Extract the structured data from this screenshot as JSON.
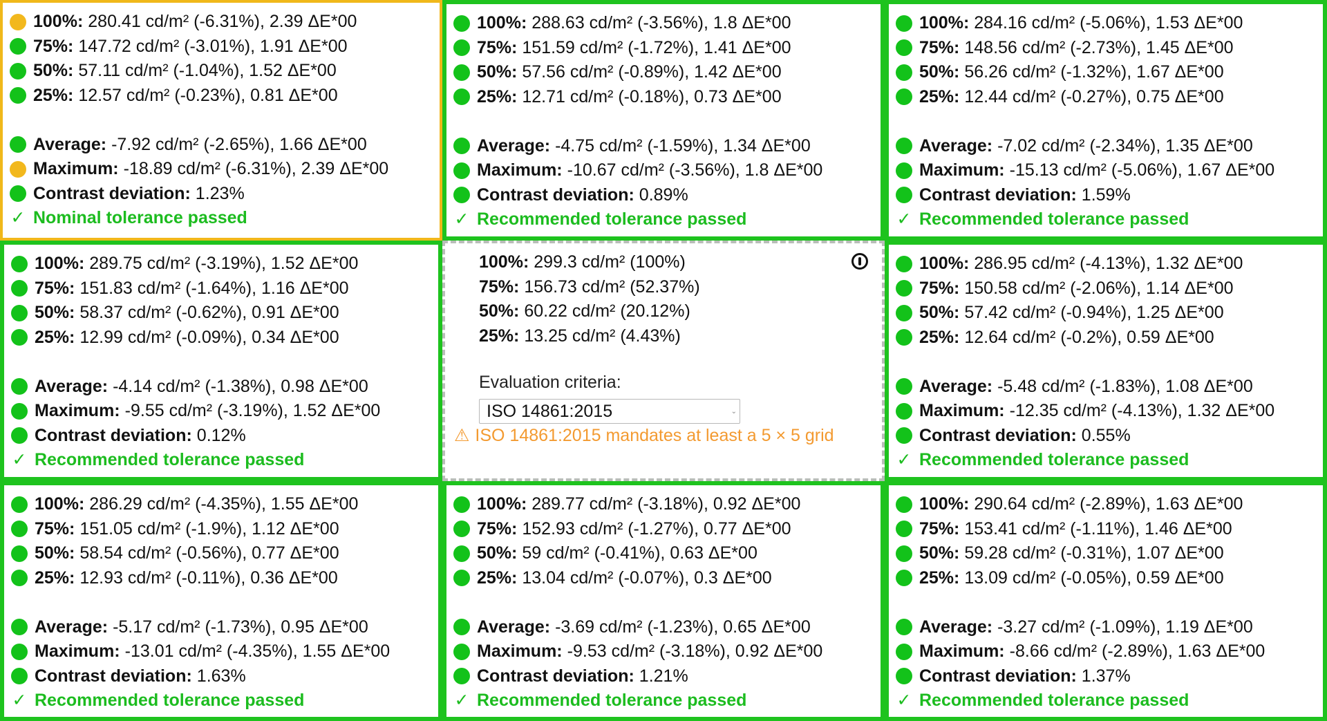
{
  "labels": {
    "p100": "100%:",
    "p75": "75%:",
    "p50": "50%:",
    "p25": "25%:",
    "average": "Average:",
    "maximum": "Maximum:",
    "contrast": "Contrast deviation:"
  },
  "check_glyph": "✓",
  "colors": {
    "green": "#13c21a",
    "yellow": "#f2b81d",
    "warning": "#f39a30",
    "green_border": "#1ec31e",
    "yellow_border": "#f0b81a"
  },
  "reference": {
    "rows": [
      {
        "label": "100%:",
        "value": "299.3 cd/m² (100%)"
      },
      {
        "label": "75%:",
        "value": "156.73 cd/m² (52.37%)"
      },
      {
        "label": "50%:",
        "value": "60.22 cd/m² (20.12%)"
      },
      {
        "label": "25%:",
        "value": "13.25 cd/m² (4.43%)"
      }
    ],
    "criteria_label": "Evaluation criteria:",
    "criteria_value": "ISO 14861:2015",
    "warning_icon": "⚠",
    "warning_text": "ISO 14861:2015 mandates at least a 5 × 5 grid"
  },
  "cells": [
    {
      "status": "yellow",
      "p100": {
        "status": "yellow",
        "value": "280.41 cd/m² (-6.31%), 2.39 ΔE*00"
      },
      "p75": {
        "status": "green",
        "value": "147.72 cd/m² (-3.01%), 1.91 ΔE*00"
      },
      "p50": {
        "status": "green",
        "value": "57.11 cd/m² (-1.04%), 1.52 ΔE*00"
      },
      "p25": {
        "status": "green",
        "value": "12.57 cd/m² (-0.23%), 0.81 ΔE*00"
      },
      "average": {
        "status": "green",
        "value": "-7.92 cd/m² (-2.65%), 1.66 ΔE*00"
      },
      "maximum": {
        "status": "yellow",
        "value": "-18.89 cd/m² (-6.31%), 2.39 ΔE*00"
      },
      "contrast": {
        "status": "green",
        "value": "1.23%"
      },
      "verdict": "Nominal tolerance passed"
    },
    {
      "status": "green",
      "p100": {
        "status": "green",
        "value": "288.63 cd/m² (-3.56%), 1.8 ΔE*00"
      },
      "p75": {
        "status": "green",
        "value": "151.59 cd/m² (-1.72%), 1.41 ΔE*00"
      },
      "p50": {
        "status": "green",
        "value": "57.56 cd/m² (-0.89%), 1.42 ΔE*00"
      },
      "p25": {
        "status": "green",
        "value": "12.71 cd/m² (-0.18%), 0.73 ΔE*00"
      },
      "average": {
        "status": "green",
        "value": "-4.75 cd/m² (-1.59%), 1.34 ΔE*00"
      },
      "maximum": {
        "status": "green",
        "value": "-10.67 cd/m² (-3.56%), 1.8 ΔE*00"
      },
      "contrast": {
        "status": "green",
        "value": "0.89%"
      },
      "verdict": "Recommended tolerance passed"
    },
    {
      "status": "green",
      "p100": {
        "status": "green",
        "value": "284.16 cd/m² (-5.06%), 1.53 ΔE*00"
      },
      "p75": {
        "status": "green",
        "value": "148.56 cd/m² (-2.73%), 1.45 ΔE*00"
      },
      "p50": {
        "status": "green",
        "value": "56.26 cd/m² (-1.32%), 1.67 ΔE*00"
      },
      "p25": {
        "status": "green",
        "value": "12.44 cd/m² (-0.27%), 0.75 ΔE*00"
      },
      "average": {
        "status": "green",
        "value": "-7.02 cd/m² (-2.34%), 1.35 ΔE*00"
      },
      "maximum": {
        "status": "green",
        "value": "-15.13 cd/m² (-5.06%), 1.67 ΔE*00"
      },
      "contrast": {
        "status": "green",
        "value": "1.59%"
      },
      "verdict": "Recommended tolerance passed"
    },
    {
      "status": "green",
      "p100": {
        "status": "green",
        "value": "289.75 cd/m² (-3.19%), 1.52 ΔE*00"
      },
      "p75": {
        "status": "green",
        "value": "151.83 cd/m² (-1.64%), 1.16 ΔE*00"
      },
      "p50": {
        "status": "green",
        "value": "58.37 cd/m² (-0.62%), 0.91 ΔE*00"
      },
      "p25": {
        "status": "green",
        "value": "12.99 cd/m² (-0.09%), 0.34 ΔE*00"
      },
      "average": {
        "status": "green",
        "value": "-4.14 cd/m² (-1.38%), 0.98 ΔE*00"
      },
      "maximum": {
        "status": "green",
        "value": "-9.55 cd/m² (-3.19%), 1.52 ΔE*00"
      },
      "contrast": {
        "status": "green",
        "value": "0.12%"
      },
      "verdict": "Recommended tolerance passed"
    },
    null,
    {
      "status": "green",
      "p100": {
        "status": "green",
        "value": "286.95 cd/m² (-4.13%), 1.32 ΔE*00"
      },
      "p75": {
        "status": "green",
        "value": "150.58 cd/m² (-2.06%), 1.14 ΔE*00"
      },
      "p50": {
        "status": "green",
        "value": "57.42 cd/m² (-0.94%), 1.25 ΔE*00"
      },
      "p25": {
        "status": "green",
        "value": "12.64 cd/m² (-0.2%), 0.59 ΔE*00"
      },
      "average": {
        "status": "green",
        "value": "-5.48 cd/m² (-1.83%), 1.08 ΔE*00"
      },
      "maximum": {
        "status": "green",
        "value": "-12.35 cd/m² (-4.13%), 1.32 ΔE*00"
      },
      "contrast": {
        "status": "green",
        "value": "0.55%"
      },
      "verdict": "Recommended tolerance passed"
    },
    {
      "status": "green",
      "p100": {
        "status": "green",
        "value": "286.29 cd/m² (-4.35%), 1.55 ΔE*00"
      },
      "p75": {
        "status": "green",
        "value": "151.05 cd/m² (-1.9%), 1.12 ΔE*00"
      },
      "p50": {
        "status": "green",
        "value": "58.54 cd/m² (-0.56%), 0.77 ΔE*00"
      },
      "p25": {
        "status": "green",
        "value": "12.93 cd/m² (-0.11%), 0.36 ΔE*00"
      },
      "average": {
        "status": "green",
        "value": "-5.17 cd/m² (-1.73%), 0.95 ΔE*00"
      },
      "maximum": {
        "status": "green",
        "value": "-13.01 cd/m² (-4.35%), 1.55 ΔE*00"
      },
      "contrast": {
        "status": "green",
        "value": "1.63%"
      },
      "verdict": "Recommended tolerance passed"
    },
    {
      "status": "green",
      "p100": {
        "status": "green",
        "value": "289.77 cd/m² (-3.18%), 0.92 ΔE*00"
      },
      "p75": {
        "status": "green",
        "value": "152.93 cd/m² (-1.27%), 0.77 ΔE*00"
      },
      "p50": {
        "status": "green",
        "value": "59 cd/m² (-0.41%), 0.63 ΔE*00"
      },
      "p25": {
        "status": "green",
        "value": "13.04 cd/m² (-0.07%), 0.3 ΔE*00"
      },
      "average": {
        "status": "green",
        "value": "-3.69 cd/m² (-1.23%), 0.65 ΔE*00"
      },
      "maximum": {
        "status": "green",
        "value": "-9.53 cd/m² (-3.18%), 0.92 ΔE*00"
      },
      "contrast": {
        "status": "green",
        "value": "1.21%"
      },
      "verdict": "Recommended tolerance passed"
    },
    {
      "status": "green",
      "p100": {
        "status": "green",
        "value": "290.64 cd/m² (-2.89%), 1.63 ΔE*00"
      },
      "p75": {
        "status": "green",
        "value": "153.41 cd/m² (-1.11%), 1.46 ΔE*00"
      },
      "p50": {
        "status": "green",
        "value": "59.28 cd/m² (-0.31%), 1.07 ΔE*00"
      },
      "p25": {
        "status": "green",
        "value": "13.09 cd/m² (-0.05%), 0.59 ΔE*00"
      },
      "average": {
        "status": "green",
        "value": "-3.27 cd/m² (-1.09%), 1.19 ΔE*00"
      },
      "maximum": {
        "status": "green",
        "value": "-8.66 cd/m² (-2.89%), 1.63 ΔE*00"
      },
      "contrast": {
        "status": "green",
        "value": "1.37%"
      },
      "verdict": "Recommended tolerance passed"
    }
  ]
}
